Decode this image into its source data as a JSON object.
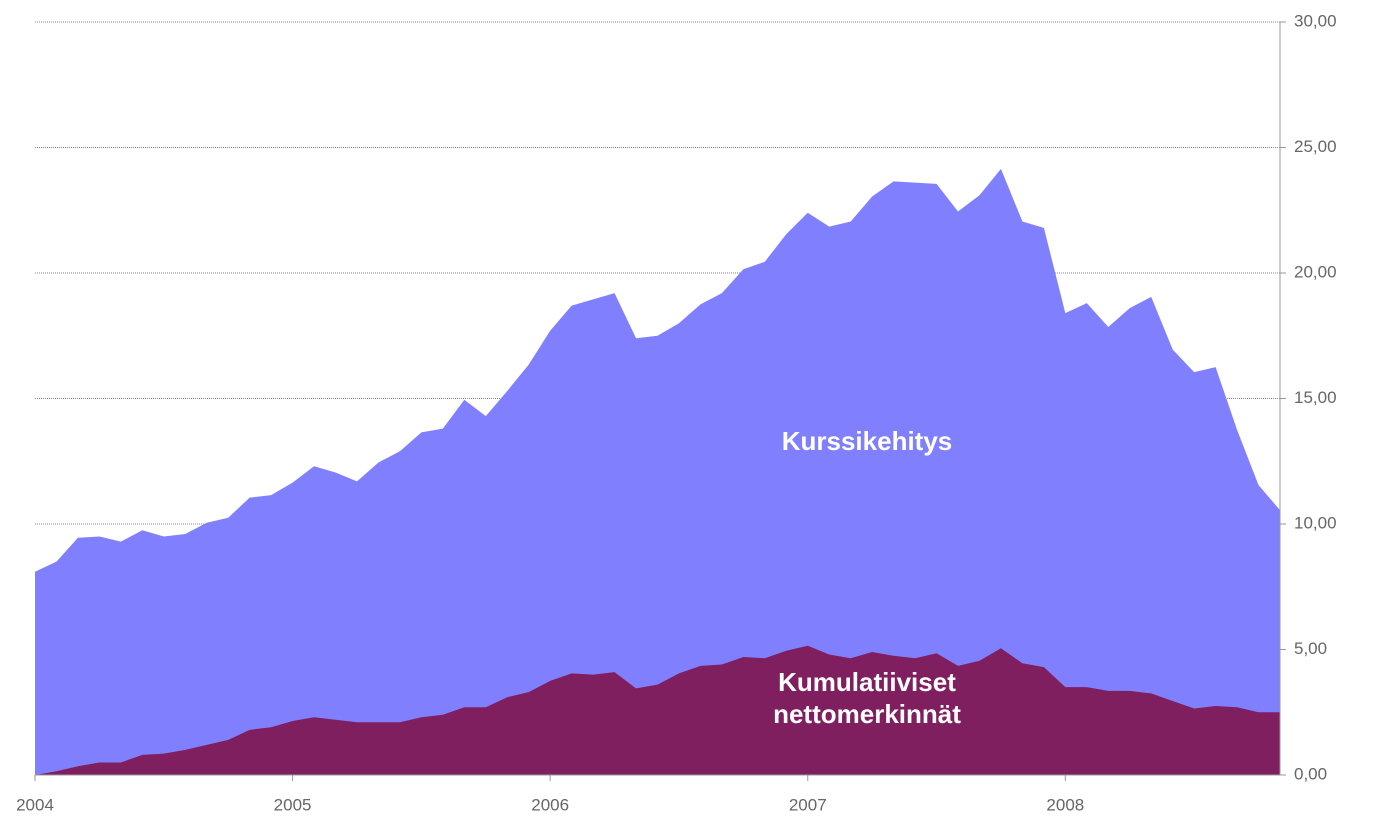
{
  "chart_data": {
    "type": "area",
    "categories": [
      "2004",
      null,
      null,
      null,
      null,
      null,
      null,
      null,
      null,
      null,
      null,
      null,
      "2005",
      null,
      null,
      null,
      null,
      null,
      null,
      null,
      null,
      null,
      null,
      null,
      "2006",
      null,
      null,
      null,
      null,
      null,
      null,
      null,
      null,
      null,
      null,
      null,
      "2007",
      null,
      null,
      null,
      null,
      null,
      null,
      null,
      null,
      null,
      null,
      null,
      "2008",
      null,
      null,
      null,
      null,
      null,
      null,
      null,
      null,
      null,
      null
    ],
    "series": [
      {
        "name": "Kurssikehitys",
        "color": "#8080ff",
        "values": [
          8.1,
          8.5,
          9.45,
          9.5,
          9.3,
          9.75,
          9.5,
          9.6,
          10.05,
          10.25,
          11.05,
          11.15,
          11.65,
          12.3,
          12.05,
          11.7,
          12.45,
          12.9,
          13.65,
          13.8,
          14.95,
          14.3,
          15.3,
          16.35,
          17.7,
          18.7,
          18.95,
          19.2,
          17.4,
          17.5,
          18.0,
          18.75,
          19.2,
          20.15,
          20.45,
          21.55,
          22.4,
          21.85,
          22.05,
          23.05,
          23.65,
          23.6,
          23.55,
          22.45,
          23.1,
          24.15,
          22.05,
          21.8,
          18.4,
          18.8,
          17.85,
          18.6,
          19.05,
          16.95,
          16.05,
          16.25,
          13.75,
          11.55,
          10.55
        ]
      },
      {
        "name": "Kumulatiiviset nettomerkinnät",
        "color": "#7f1f5f",
        "values": [
          0,
          0.15,
          0.35,
          0.5,
          0.5,
          0.8,
          0.85,
          1.0,
          1.2,
          1.4,
          1.8,
          1.9,
          2.15,
          2.3,
          2.2,
          2.1,
          2.1,
          2.1,
          2.3,
          2.4,
          2.7,
          2.7,
          3.1,
          3.3,
          3.75,
          4.05,
          4.0,
          4.1,
          3.45,
          3.6,
          4.05,
          4.35,
          4.4,
          4.7,
          4.65,
          4.95,
          5.15,
          4.8,
          4.65,
          4.9,
          4.75,
          4.65,
          4.85,
          4.35,
          4.55,
          5.05,
          4.45,
          4.3,
          3.5,
          3.5,
          3.35,
          3.35,
          3.25,
          2.95,
          2.65,
          2.75,
          2.7,
          2.5,
          2.5
        ]
      }
    ],
    "ylim": [
      0,
      30
    ],
    "yticks": [
      {
        "value": 0,
        "label": "0,00"
      },
      {
        "value": 5,
        "label": "5,00"
      },
      {
        "value": 10,
        "label": "10,00"
      },
      {
        "value": 15,
        "label": "15,00"
      },
      {
        "value": 20,
        "label": "20,00"
      },
      {
        "value": 25,
        "label": "25,00"
      },
      {
        "value": 30,
        "label": "30,00"
      }
    ],
    "grid": true
  }
}
